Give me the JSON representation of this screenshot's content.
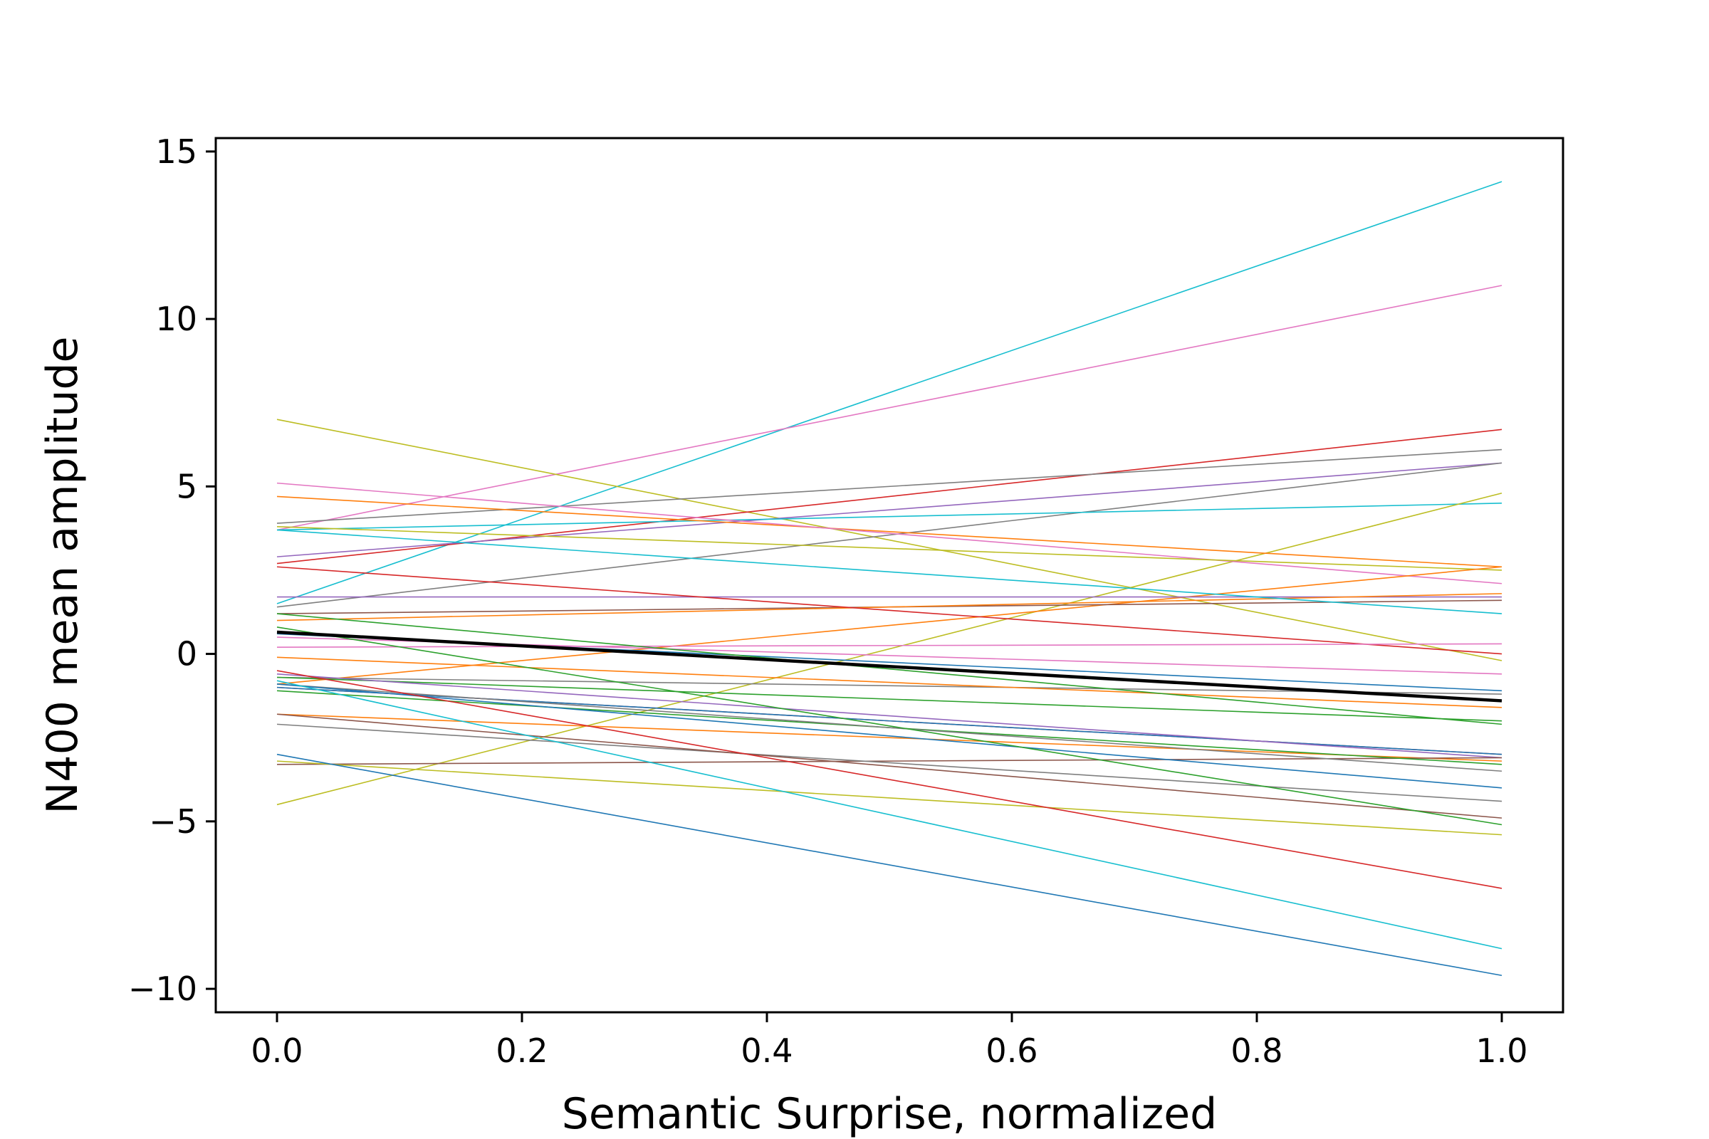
{
  "chart_data": {
    "type": "line",
    "title": "",
    "xlabel": "Semantic Surprise, normalized",
    "ylabel": "N400 mean amplitude",
    "xlim": [
      -0.05,
      1.05
    ],
    "ylim": [
      -10.7,
      15.4
    ],
    "x": [
      0.0,
      1.0
    ],
    "xticks": [
      "0.0",
      "0.2",
      "0.4",
      "0.6",
      "0.8",
      "1.0"
    ],
    "xtick_values": [
      0.0,
      0.2,
      0.4,
      0.6,
      0.8,
      1.0
    ],
    "yticks": [
      "−10",
      "−5",
      "0",
      "5",
      "10",
      "15"
    ],
    "ytick_values": [
      -10,
      -5,
      0,
      5,
      10,
      15
    ],
    "grid": false,
    "legend": "none",
    "series": [
      {
        "color": "#17becf",
        "values": [
          1.5,
          14.1
        ]
      },
      {
        "color": "#e377c2",
        "values": [
          3.7,
          11.0
        ]
      },
      {
        "color": "#bcbd22",
        "values": [
          7.0,
          -0.2
        ]
      },
      {
        "color": "#d62728",
        "values": [
          2.7,
          6.7
        ]
      },
      {
        "color": "#7f7f7f",
        "values": [
          3.9,
          6.1
        ]
      },
      {
        "color": "#9467bd",
        "values": [
          2.9,
          5.7
        ]
      },
      {
        "color": "#7f7f7f",
        "values": [
          1.4,
          5.7
        ]
      },
      {
        "color": "#17becf",
        "values": [
          3.7,
          4.5
        ]
      },
      {
        "color": "#bcbd22",
        "values": [
          -4.5,
          4.8
        ]
      },
      {
        "color": "#ff7f0e",
        "values": [
          4.7,
          2.6
        ]
      },
      {
        "color": "#e377c2",
        "values": [
          5.1,
          2.1
        ]
      },
      {
        "color": "#bcbd22",
        "values": [
          3.8,
          2.5
        ]
      },
      {
        "color": "#ff7f0e",
        "values": [
          -0.9,
          2.6
        ]
      },
      {
        "color": "#9467bd",
        "values": [
          1.7,
          1.7
        ]
      },
      {
        "color": "#8c564b",
        "values": [
          1.2,
          1.6
        ]
      },
      {
        "color": "#ff7f0e",
        "values": [
          1.0,
          1.8
        ]
      },
      {
        "color": "#17becf",
        "values": [
          3.7,
          1.2
        ]
      },
      {
        "color": "#d62728",
        "values": [
          2.6,
          0.0
        ]
      },
      {
        "color": "#e377c2",
        "values": [
          0.2,
          0.3
        ]
      },
      {
        "color": "#e377c2",
        "values": [
          0.5,
          -0.6
        ]
      },
      {
        "color": "#1f77b4",
        "values": [
          0.6,
          -1.1
        ]
      },
      {
        "color": "#7f7f7f",
        "values": [
          -0.7,
          -1.2
        ]
      },
      {
        "color": "#ff7f0e",
        "values": [
          -0.1,
          -1.6
        ]
      },
      {
        "color": "#2ca02c",
        "values": [
          -0.7,
          -2.0
        ]
      },
      {
        "color": "#2ca02c",
        "values": [
          1.2,
          -2.1
        ]
      },
      {
        "color": "#d62728",
        "values": [
          -1.0,
          -3.0
        ]
      },
      {
        "color": "#1f77b4",
        "values": [
          -1.0,
          -3.0
        ]
      },
      {
        "color": "#9467bd",
        "values": [
          -0.6,
          -3.1
        ]
      },
      {
        "color": "#ff7f0e",
        "values": [
          -1.8,
          -3.2
        ]
      },
      {
        "color": "#8c564b",
        "values": [
          -3.3,
          -3.1
        ]
      },
      {
        "color": "#2ca02c",
        "values": [
          -1.1,
          -3.3
        ]
      },
      {
        "color": "#7f7f7f",
        "values": [
          -0.9,
          -3.5
        ]
      },
      {
        "color": "#1f77b4",
        "values": [
          -0.9,
          -4.0
        ]
      },
      {
        "color": "#7f7f7f",
        "values": [
          -2.1,
          -4.4
        ]
      },
      {
        "color": "#8c564b",
        "values": [
          -1.8,
          -4.9
        ]
      },
      {
        "color": "#2ca02c",
        "values": [
          0.8,
          -5.1
        ]
      },
      {
        "color": "#bcbd22",
        "values": [
          -3.2,
          -5.4
        ]
      },
      {
        "color": "#d62728",
        "values": [
          -0.5,
          -7.0
        ]
      },
      {
        "color": "#17becf",
        "values": [
          -0.8,
          -8.8
        ]
      },
      {
        "color": "#1f77b4",
        "values": [
          -3.0,
          -9.6
        ]
      },
      {
        "color": "#000000",
        "values": [
          0.65,
          -1.4
        ],
        "emphasis": true
      }
    ]
  }
}
